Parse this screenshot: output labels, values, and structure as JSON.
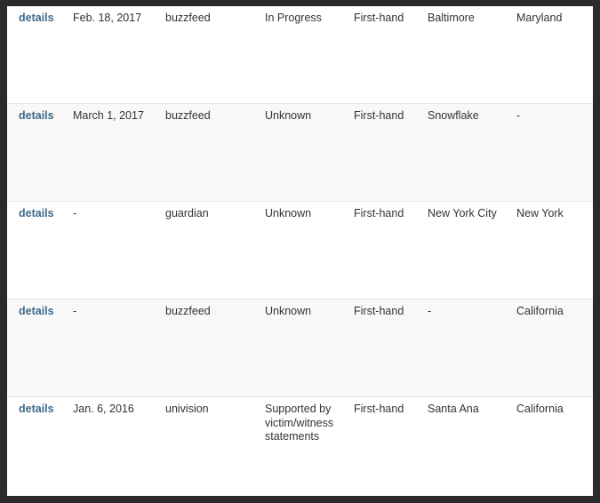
{
  "rows": [
    {
      "link": "details",
      "date": "Feb. 18, 2017",
      "source": "buzzfeed",
      "status": "In Progress",
      "type": "First-hand",
      "city": "Baltimore",
      "state": "Maryland"
    },
    {
      "link": "details",
      "date": "March 1, 2017",
      "source": "buzzfeed",
      "status": "Unknown",
      "type": "First-hand",
      "city": "Snowflake",
      "state": "-"
    },
    {
      "link": "details",
      "date": "-",
      "source": "guardian",
      "status": "Unknown",
      "type": "First-hand",
      "city": "New York City",
      "state": "New York"
    },
    {
      "link": "details",
      "date": "-",
      "source": "buzzfeed",
      "status": "Unknown",
      "type": "First-hand",
      "city": "-",
      "state": "California"
    },
    {
      "link": "details",
      "date": "Jan. 6, 2016",
      "source": "univision",
      "status": "Supported by victim/witness statements",
      "type": "First-hand",
      "city": "Santa Ana",
      "state": "California"
    }
  ],
  "colors": {
    "link": "#3d6a8a",
    "alt_row": "#f8f8f8",
    "frame": "#2b2b2b"
  }
}
